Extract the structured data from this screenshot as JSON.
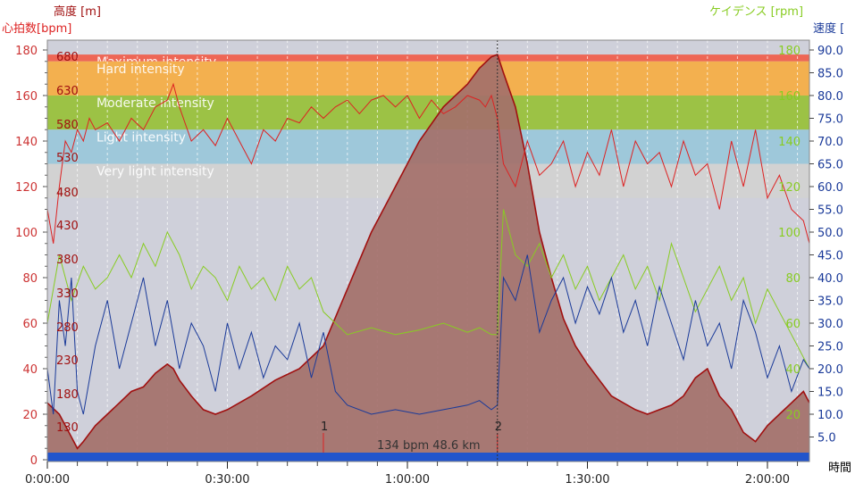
{
  "axis_titles": {
    "elevation": "高度 [m]",
    "heart_rate": "心拍数[bpm]",
    "cadence": "ケイデンス [rpm]",
    "speed": "速度 [",
    "time": "時間"
  },
  "colors": {
    "heart_rate": "#dd2222",
    "elevation_fill": "#a4706a",
    "elevation_line": "#a01010",
    "cadence": "#88cc22",
    "speed": "#1a3a99",
    "baseline_bar": "#2255cc",
    "background": "#cfd0da",
    "zone_max": "#ee6655",
    "zone_hard": "#f3b04f",
    "zone_moderate": "#9cc245",
    "zone_light": "#9ec8da",
    "zone_very_light": "#d2d2d2"
  },
  "chart_data": {
    "type": "line",
    "x_axis": {
      "label": "時間",
      "ticks": [
        "0:00:00",
        "0:30:00",
        "1:00:00",
        "1:30:00",
        "2:00:00"
      ],
      "range_min": [
        0,
        127
      ]
    },
    "y_axes": {
      "heart_rate": {
        "label": "心拍数[bpm]",
        "range": [
          0,
          180
        ],
        "ticks": [
          "0",
          "20",
          "40",
          "60",
          "80",
          "100",
          "120",
          "140",
          "160",
          "180"
        ]
      },
      "elevation": {
        "label": "高度 [m]",
        "ticks": [
          "130",
          "180",
          "230",
          "280",
          "330",
          "380",
          "430",
          "480",
          "530",
          "580",
          "630",
          "680"
        ]
      },
      "speed": {
        "label": "速度 [",
        "range": [
          0,
          90
        ],
        "ticks": [
          "5.0",
          "10.0",
          "15.0",
          "20.0",
          "25.0",
          "30.0",
          "35.0",
          "40.0",
          "45.0",
          "50.0",
          "55.0",
          "60.0",
          "65.0",
          "70.0",
          "75.0",
          "80.0",
          "85.0",
          "90.0"
        ]
      },
      "cadence": {
        "label": "ケイデンス [rpm]",
        "range": [
          0,
          180
        ],
        "ticks": [
          "20",
          "40",
          "60",
          "80",
          "100",
          "120",
          "140",
          "160",
          "180"
        ]
      }
    },
    "zones": [
      {
        "name": "Maximum intensity",
        "from": 175,
        "to": 178
      },
      {
        "name": "Hard intensity",
        "from": 160,
        "to": 175
      },
      {
        "name": "Moderate intensity",
        "from": 145,
        "to": 160
      },
      {
        "name": "Light intensity",
        "from": 130,
        "to": 145
      },
      {
        "name": "Very light intensity",
        "from": 115,
        "to": 130
      }
    ],
    "markers": [
      {
        "label": "1",
        "t": 46
      },
      {
        "label": "2",
        "t": 75
      }
    ],
    "annotation": "134 bpm 48.6 km",
    "series": [
      {
        "name": "心拍数[bpm]",
        "axis": "heart_rate",
        "t": [
          0,
          1,
          2,
          3,
          4,
          5,
          6,
          7,
          8,
          10,
          12,
          14,
          16,
          18,
          20,
          21,
          22,
          24,
          26,
          28,
          30,
          32,
          34,
          36,
          38,
          40,
          42,
          44,
          46,
          48,
          50,
          52,
          54,
          56,
          58,
          60,
          62,
          64,
          66,
          68,
          70,
          72,
          73,
          74,
          75,
          76,
          77,
          78,
          79,
          80,
          82,
          84,
          86,
          88,
          90,
          92,
          94,
          96,
          98,
          100,
          102,
          104,
          106,
          108,
          110,
          112,
          114,
          116,
          118,
          120,
          122,
          124,
          126,
          127
        ],
        "values": [
          110,
          95,
          120,
          140,
          135,
          145,
          140,
          150,
          145,
          148,
          140,
          150,
          145,
          155,
          158,
          165,
          155,
          140,
          145,
          138,
          150,
          140,
          130,
          145,
          140,
          150,
          148,
          155,
          150,
          155,
          158,
          152,
          158,
          160,
          155,
          160,
          150,
          158,
          152,
          155,
          160,
          158,
          155,
          160,
          150,
          130,
          125,
          120,
          130,
          140,
          125,
          130,
          140,
          120,
          135,
          125,
          145,
          120,
          140,
          130,
          135,
          120,
          140,
          125,
          130,
          110,
          140,
          120,
          145,
          115,
          125,
          110,
          105,
          95
        ]
      },
      {
        "name": "高度 [m]",
        "axis": "heart_rate",
        "t": [
          0,
          2,
          4,
          5,
          6,
          8,
          10,
          12,
          14,
          16,
          18,
          20,
          21,
          22,
          24,
          26,
          28,
          30,
          34,
          38,
          42,
          46,
          50,
          54,
          58,
          62,
          66,
          70,
          72,
          74,
          75,
          76,
          78,
          80,
          82,
          84,
          86,
          88,
          90,
          92,
          94,
          96,
          98,
          100,
          102,
          104,
          106,
          108,
          110,
          112,
          114,
          116,
          118,
          120,
          122,
          124,
          126,
          127
        ],
        "values": [
          25,
          20,
          10,
          5,
          8,
          15,
          20,
          25,
          30,
          32,
          38,
          42,
          40,
          35,
          28,
          22,
          20,
          22,
          28,
          35,
          40,
          50,
          75,
          100,
          120,
          140,
          155,
          165,
          172,
          177,
          178,
          170,
          155,
          130,
          100,
          80,
          62,
          50,
          42,
          35,
          28,
          25,
          22,
          20,
          22,
          24,
          28,
          36,
          40,
          28,
          22,
          12,
          8,
          15,
          20,
          25,
          30,
          25
        ]
      },
      {
        "name": "速度 [",
        "axis": "speed",
        "t": [
          0,
          1,
          2,
          3,
          4,
          5,
          6,
          8,
          10,
          12,
          14,
          16,
          18,
          20,
          22,
          24,
          26,
          28,
          30,
          32,
          34,
          36,
          38,
          40,
          42,
          44,
          46,
          48,
          50,
          54,
          58,
          62,
          66,
          70,
          72,
          74,
          75,
          76,
          78,
          80,
          82,
          84,
          86,
          88,
          90,
          92,
          94,
          96,
          98,
          100,
          102,
          104,
          106,
          108,
          110,
          112,
          114,
          116,
          118,
          120,
          122,
          124,
          126,
          127
        ],
        "values": [
          20,
          10,
          35,
          25,
          40,
          15,
          10,
          25,
          35,
          20,
          30,
          40,
          25,
          35,
          20,
          30,
          25,
          15,
          30,
          20,
          28,
          18,
          25,
          22,
          30,
          18,
          28,
          15,
          12,
          10,
          11,
          10,
          11,
          12,
          13,
          11,
          12,
          40,
          35,
          45,
          28,
          35,
          40,
          30,
          38,
          32,
          40,
          28,
          35,
          25,
          38,
          30,
          22,
          35,
          25,
          30,
          20,
          35,
          28,
          18,
          25,
          15,
          22,
          20
        ]
      },
      {
        "name": "ケイデンス [rpm]",
        "axis": "cadence",
        "t": [
          0,
          2,
          4,
          6,
          8,
          10,
          12,
          14,
          16,
          18,
          20,
          22,
          24,
          26,
          28,
          30,
          32,
          34,
          36,
          38,
          40,
          42,
          44,
          46,
          48,
          50,
          54,
          58,
          62,
          66,
          70,
          72,
          74,
          75,
          76,
          78,
          80,
          82,
          84,
          86,
          88,
          90,
          92,
          94,
          96,
          98,
          100,
          102,
          104,
          106,
          108,
          110,
          112,
          114,
          116,
          118,
          120,
          122,
          124,
          126,
          127
        ],
        "values": [
          60,
          90,
          70,
          85,
          75,
          80,
          90,
          80,
          95,
          85,
          100,
          90,
          75,
          85,
          80,
          70,
          85,
          75,
          80,
          70,
          85,
          75,
          80,
          65,
          60,
          55,
          58,
          55,
          57,
          60,
          56,
          58,
          55,
          55,
          110,
          90,
          85,
          95,
          80,
          90,
          75,
          85,
          70,
          80,
          90,
          75,
          85,
          70,
          95,
          80,
          65,
          75,
          85,
          70,
          80,
          60,
          75,
          65,
          55,
          45,
          40
        ]
      }
    ]
  }
}
